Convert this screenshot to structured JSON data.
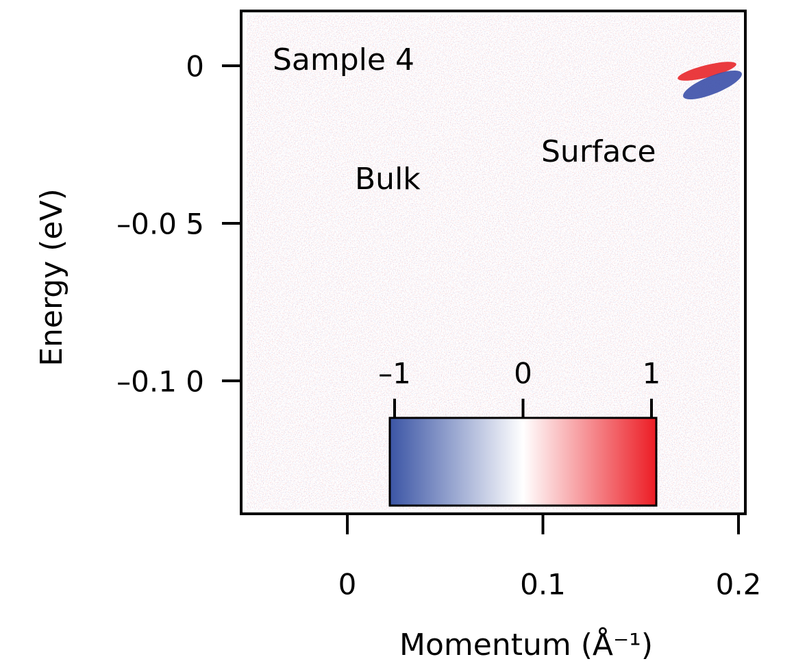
{
  "chart_data": {
    "type": "heatmap",
    "xlabel": "Momentum (Å⁻¹)",
    "ylabel": "Energy (eV)",
    "xlim": [
      -0.0543,
      0.2035
    ],
    "ylim": [
      -0.1422,
      0.0174
    ],
    "xticks": [
      0,
      0.1,
      0.2
    ],
    "yticks": [
      0,
      {
        "value": -0.05,
        "label": "–0.0 5"
      },
      {
        "value": -0.1,
        "label": "–0.1 0"
      }
    ],
    "annotations": [
      "Sample  4",
      "Bulk",
      "Surface"
    ],
    "colorbar": {
      "clim": [
        -1,
        1
      ],
      "ticks": [
        {
          "value": -1,
          "label": "–1"
        },
        0,
        1
      ],
      "colors": [
        "#3b55a5",
        "#ffffff",
        "#ec1c24"
      ]
    }
  }
}
